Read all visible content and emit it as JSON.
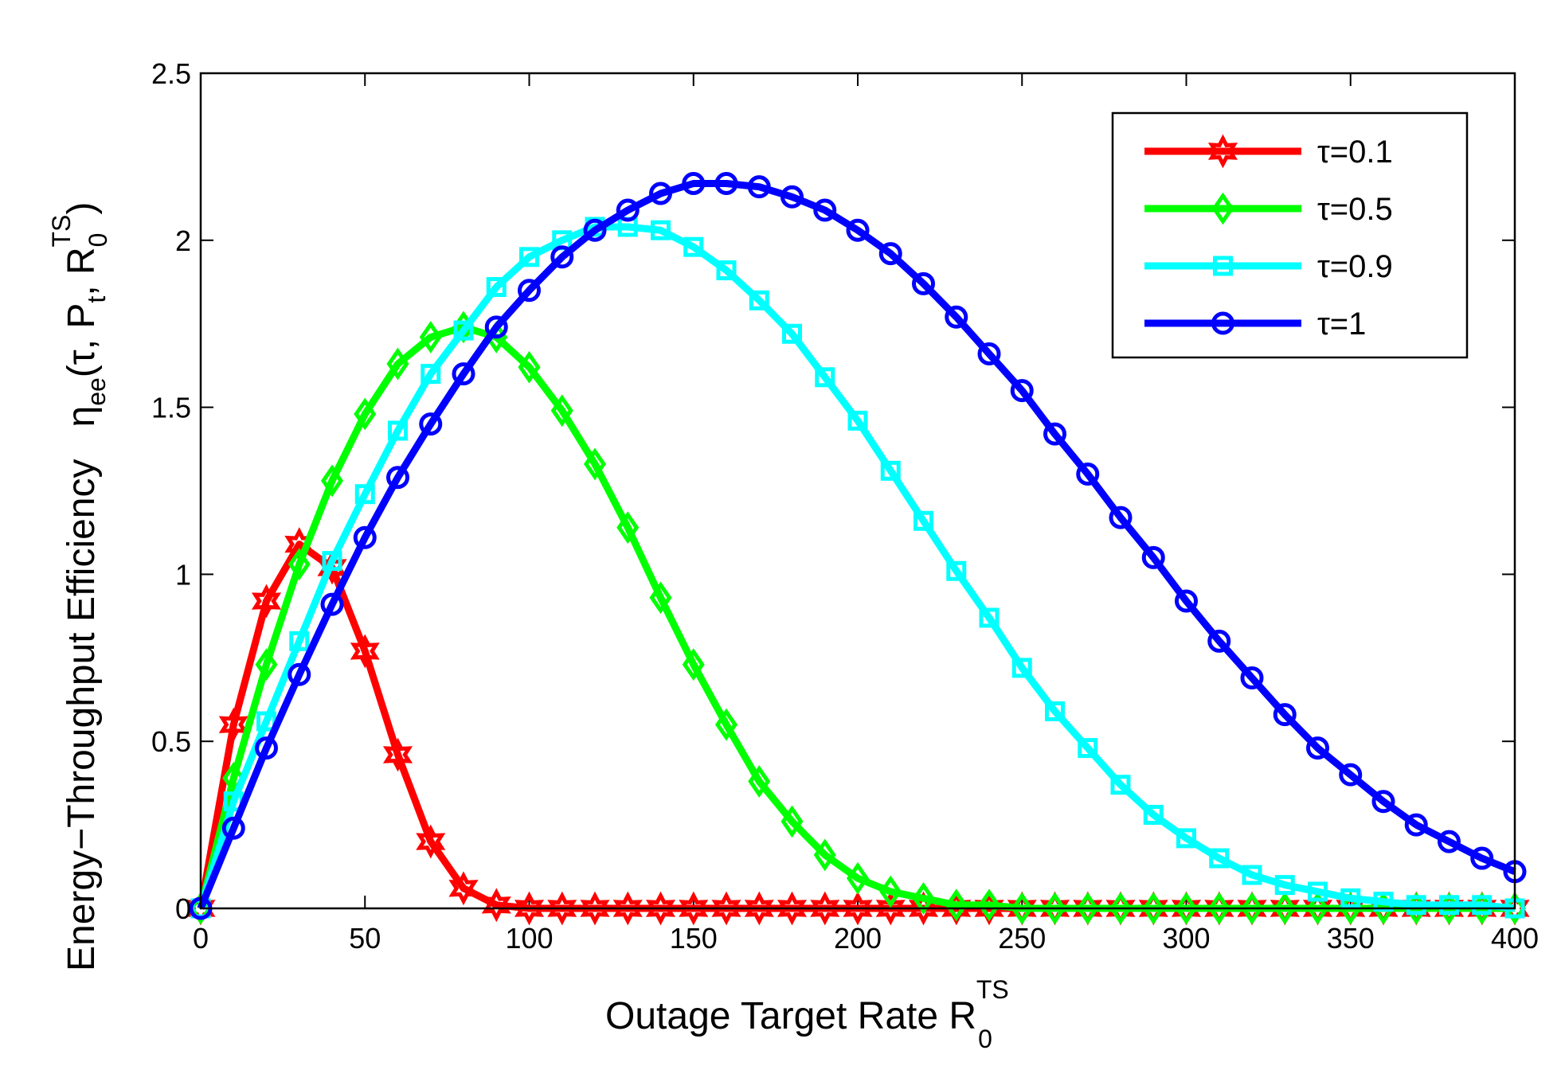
{
  "chart_data": {
    "type": "line",
    "title": "",
    "xlabel": "Outage Target Rate R",
    "xlabel_sub": "0",
    "xlabel_sup": "TS",
    "ylabel_text": "Energy−Throughput Efficiency",
    "ylabel_eta": "η",
    "ylabel_ee": "ee",
    "ylabel_open": "(τ, P",
    "ylabel_t": "t",
    "ylabel_comma": ", R",
    "ylabel_zero": "0",
    "ylabel_ts": "TS",
    "ylabel_close": ")",
    "xlim": [
      0,
      400
    ],
    "ylim": [
      0,
      2.5
    ],
    "xticks": [
      "0",
      "50",
      "100",
      "150",
      "200",
      "250",
      "300",
      "350",
      "400"
    ],
    "yticks": [
      "0",
      "0.5",
      "1",
      "1.5",
      "2",
      "2.5"
    ],
    "legend_position": "top-right",
    "x": [
      0,
      10,
      20,
      30,
      40,
      50,
      60,
      70,
      80,
      90,
      100,
      110,
      120,
      130,
      140,
      150,
      160,
      170,
      180,
      190,
      200,
      210,
      220,
      230,
      240,
      250,
      260,
      270,
      280,
      290,
      300,
      310,
      320,
      330,
      340,
      350,
      360,
      370,
      380,
      390,
      400
    ],
    "series": [
      {
        "name": "τ=0.1",
        "color": "#ff0000",
        "marker": "star",
        "values": [
          0,
          0.55,
          0.92,
          1.09,
          1.02,
          0.77,
          0.46,
          0.2,
          0.06,
          0.01,
          0,
          0,
          0,
          0,
          0,
          0,
          0,
          0,
          0,
          0,
          0,
          0,
          0,
          0,
          0,
          0,
          0,
          0,
          0,
          0,
          0,
          0,
          0,
          0,
          0,
          0,
          0,
          0,
          0,
          0,
          0
        ]
      },
      {
        "name": "τ=0.5",
        "color": "#00ff00",
        "marker": "diamond",
        "values": [
          0,
          0.39,
          0.73,
          1.03,
          1.28,
          1.48,
          1.63,
          1.71,
          1.74,
          1.71,
          1.62,
          1.49,
          1.33,
          1.14,
          0.93,
          0.73,
          0.55,
          0.38,
          0.26,
          0.16,
          0.09,
          0.05,
          0.03,
          0.01,
          0.01,
          0,
          0,
          0,
          0,
          0,
          0,
          0,
          0,
          0,
          0,
          0,
          0,
          0,
          0,
          0,
          0
        ]
      },
      {
        "name": "τ=0.9",
        "color": "#00ffff",
        "marker": "square",
        "values": [
          0,
          0.32,
          0.56,
          0.8,
          1.04,
          1.24,
          1.43,
          1.6,
          1.73,
          1.86,
          1.95,
          2.0,
          2.04,
          2.04,
          2.03,
          1.98,
          1.91,
          1.82,
          1.72,
          1.59,
          1.46,
          1.31,
          1.16,
          1.01,
          0.87,
          0.72,
          0.59,
          0.48,
          0.37,
          0.28,
          0.21,
          0.15,
          0.1,
          0.07,
          0.05,
          0.03,
          0.02,
          0.01,
          0.01,
          0.01,
          0
        ]
      },
      {
        "name": "τ=1",
        "color": "#0000ff",
        "marker": "circle",
        "values": [
          0,
          0.24,
          0.48,
          0.7,
          0.91,
          1.11,
          1.29,
          1.45,
          1.6,
          1.74,
          1.85,
          1.95,
          2.03,
          2.09,
          2.14,
          2.17,
          2.17,
          2.16,
          2.13,
          2.09,
          2.03,
          1.96,
          1.87,
          1.77,
          1.66,
          1.55,
          1.42,
          1.3,
          1.17,
          1.05,
          0.92,
          0.8,
          0.69,
          0.58,
          0.48,
          0.4,
          0.32,
          0.25,
          0.2,
          0.15,
          0.11
        ]
      }
    ]
  }
}
